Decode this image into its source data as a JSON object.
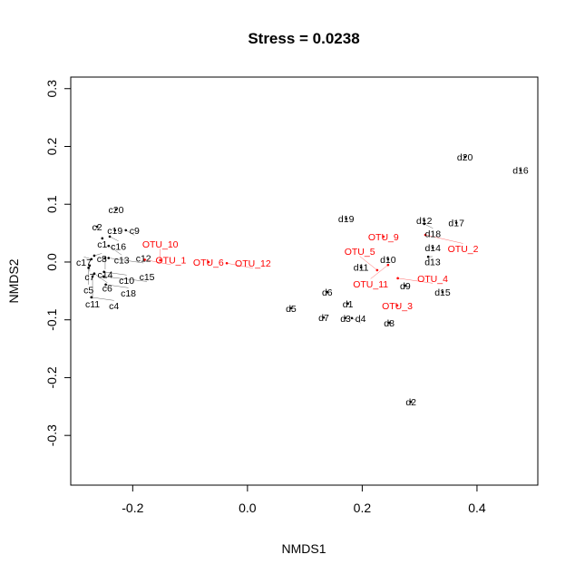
{
  "chart_data": {
    "type": "scatter",
    "title": "Stress = 0.0238",
    "xlabel": "NMDS1",
    "ylabel": "NMDS2",
    "xlim": [
      -0.308,
      0.506
    ],
    "ylim": [
      -0.386,
      0.32
    ],
    "xticks": [
      "-0.2",
      "0.0",
      "0.2",
      "0.4"
    ],
    "xtick_values": [
      -0.2,
      0.0,
      0.2,
      0.4
    ],
    "yticks": [
      "-0.3",
      "-0.2",
      "-0.1",
      "0.0",
      "0.1",
      "0.2",
      "0.3"
    ],
    "ytick_values": [
      -0.3,
      -0.2,
      -0.1,
      0.0,
      0.1,
      0.2,
      0.3
    ],
    "grid": false,
    "colors": {
      "sites": "#000000",
      "species": "#ff0000"
    },
    "series": [
      {
        "name": "sites",
        "points": [
          {
            "label": "c20",
            "x": -0.229,
            "y": 0.091
          },
          {
            "label": "c2",
            "x": -0.262,
            "y": 0.061
          },
          {
            "label": "c19",
            "x": -0.231,
            "y": 0.055
          },
          {
            "label": "c9",
            "x": -0.212,
            "y": 0.055
          },
          {
            "label": "c16",
            "x": -0.24,
            "y": 0.044
          },
          {
            "label": "c1",
            "x": -0.253,
            "y": 0.041
          },
          {
            "label": "c13",
            "x": -0.242,
            "y": 0.028
          },
          {
            "label": "c8",
            "x": -0.267,
            "y": 0.011
          },
          {
            "label": "c17",
            "x": -0.272,
            "y": 0.005
          },
          {
            "label": "c14",
            "x": -0.248,
            "y": 0.007
          },
          {
            "label": "c12",
            "x": -0.242,
            "y": 0.007
          },
          {
            "label": "c7",
            "x": -0.275,
            "y": -0.006
          },
          {
            "label": "c5",
            "x": -0.277,
            "y": -0.01
          },
          {
            "label": "c10",
            "x": -0.25,
            "y": -0.017
          },
          {
            "label": "c6",
            "x": -0.267,
            "y": -0.02
          },
          {
            "label": "c11",
            "x": -0.27,
            "y": -0.025
          },
          {
            "label": "c15",
            "x": -0.251,
            "y": -0.025
          },
          {
            "label": "c18",
            "x": -0.247,
            "y": -0.039
          },
          {
            "label": "c4",
            "x": -0.272,
            "y": -0.061
          },
          {
            "label": "d20",
            "x": 0.379,
            "y": 0.182
          },
          {
            "label": "d16",
            "x": 0.476,
            "y": 0.159
          },
          {
            "label": "d19",
            "x": 0.172,
            "y": 0.075
          },
          {
            "label": "d12",
            "x": 0.308,
            "y": 0.072
          },
          {
            "label": "d18",
            "x": 0.308,
            "y": 0.066
          },
          {
            "label": "d17",
            "x": 0.364,
            "y": 0.068
          },
          {
            "label": "d14",
            "x": 0.323,
            "y": 0.025
          },
          {
            "label": "d13",
            "x": 0.315,
            "y": 0.009
          },
          {
            "label": "d10",
            "x": 0.245,
            "y": 0.005
          },
          {
            "label": "d11",
            "x": 0.198,
            "y": -0.009
          },
          {
            "label": "d9",
            "x": 0.275,
            "y": -0.041
          },
          {
            "label": "d15",
            "x": 0.34,
            "y": -0.052
          },
          {
            "label": "d6",
            "x": 0.139,
            "y": -0.052
          },
          {
            "label": "d1",
            "x": 0.175,
            "y": -0.072
          },
          {
            "label": "d5",
            "x": 0.076,
            "y": -0.08
          },
          {
            "label": "d7",
            "x": 0.133,
            "y": -0.096
          },
          {
            "label": "d3",
            "x": 0.171,
            "y": -0.097
          },
          {
            "label": "d4",
            "x": 0.182,
            "y": -0.097
          },
          {
            "label": "d8",
            "x": 0.247,
            "y": -0.105
          },
          {
            "label": "d2",
            "x": 0.285,
            "y": -0.242
          }
        ]
      },
      {
        "name": "species",
        "points": [
          {
            "label": "OTU_1",
            "x": -0.179,
            "y": 0.004
          },
          {
            "label": "OTU_10",
            "x": -0.152,
            "y": 0.003
          },
          {
            "label": "OTU_6",
            "x": -0.068,
            "y": 0.0
          },
          {
            "label": "OTU_12",
            "x": -0.036,
            "y": -0.002
          },
          {
            "label": "OTU_9",
            "x": 0.237,
            "y": 0.044
          },
          {
            "label": "OTU_2",
            "x": 0.31,
            "y": 0.047
          },
          {
            "label": "OTU_11",
            "x": 0.245,
            "y": -0.005
          },
          {
            "label": "OTU_5",
            "x": 0.226,
            "y": -0.014
          },
          {
            "label": "OTU_4",
            "x": 0.262,
            "y": -0.028
          },
          {
            "label": "OTU_3",
            "x": 0.261,
            "y": -0.075
          }
        ]
      }
    ]
  }
}
